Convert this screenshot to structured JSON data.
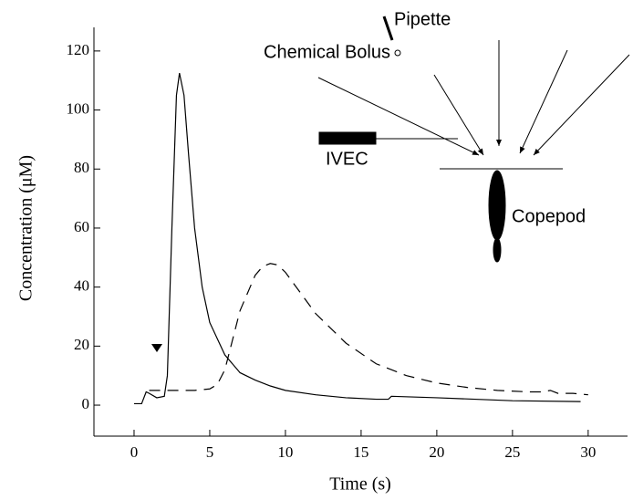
{
  "chart_data": {
    "type": "line",
    "xlabel": "Time (s)",
    "ylabel": "Concentration (μM)",
    "x_series_note": null,
    "series": [
      {
        "color": "#000000",
        "dash": "solid",
        "x": [
          0,
          0.5,
          0.8,
          1,
          1.5,
          2,
          2.2,
          2.5,
          2.8,
          3,
          3.3,
          3.6,
          4,
          4.5,
          5,
          6,
          7,
          8,
          9,
          10,
          12,
          14,
          16,
          16.8,
          17,
          20,
          25,
          29.5
        ],
        "values": [
          0.5,
          0.5,
          4.5,
          4,
          2.5,
          3,
          10,
          60,
          105,
          112.5,
          105,
          85,
          60,
          40,
          28,
          17,
          11,
          8.5,
          6.5,
          5,
          3.5,
          2.5,
          2,
          2,
          3,
          2.5,
          1.5,
          1.2
        ]
      },
      {
        "color": "#000000",
        "dash": "dashed",
        "x": [
          1,
          3,
          4,
          5,
          5.5,
          6,
          7,
          8,
          8.5,
          9,
          9.5,
          10,
          11,
          12,
          14,
          16,
          18,
          20,
          22,
          24,
          26,
          27,
          27.5,
          28,
          29,
          30
        ],
        "values": [
          5,
          5,
          5,
          5.5,
          7,
          12,
          32,
          44,
          47,
          48,
          47.5,
          45,
          38,
          31,
          21,
          14,
          10,
          7.5,
          6,
          5,
          4.5,
          4.5,
          5,
          4,
          4,
          3.5
        ]
      }
    ],
    "xlim": [
      -2.65,
      32.6
    ],
    "xticks": [
      0,
      5,
      10,
      15,
      20,
      25,
      30
    ],
    "ylim": [
      -10.5,
      128
    ],
    "yticks": [
      0,
      20,
      40,
      60,
      80,
      100,
      120
    ],
    "annotations": [
      "Pipette",
      "Chemical Bolus",
      "IVEC",
      "Copepod"
    ]
  }
}
